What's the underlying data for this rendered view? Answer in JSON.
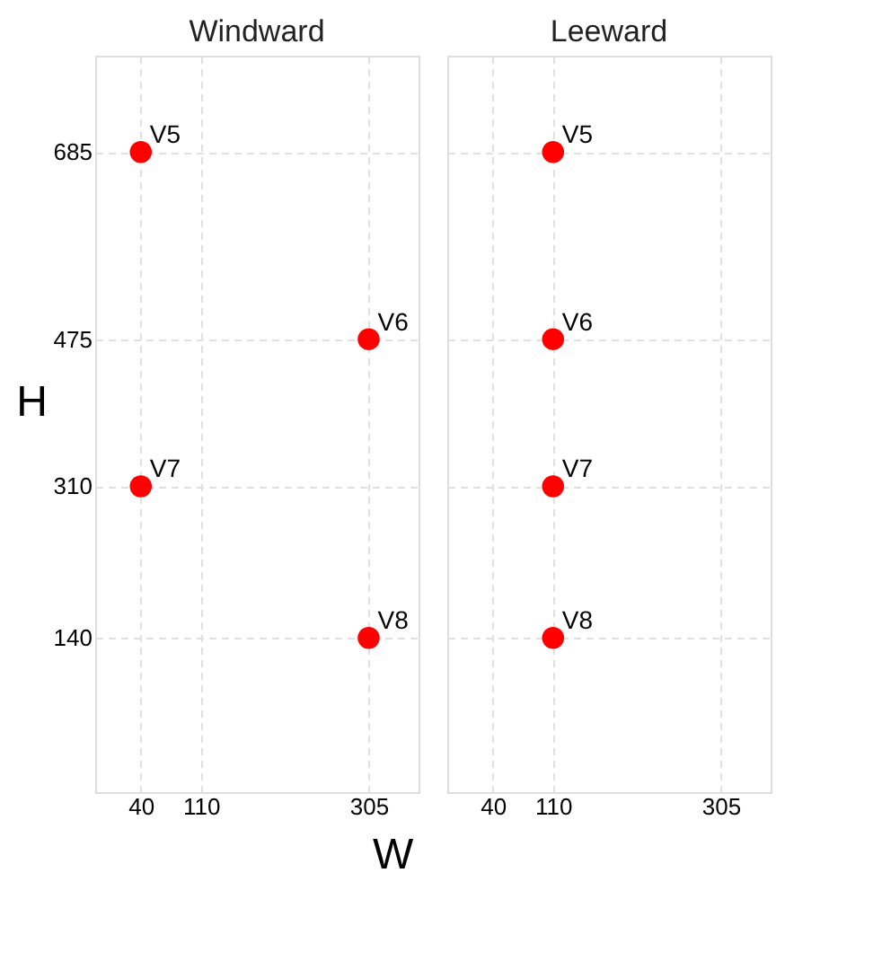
{
  "chart_data": [
    {
      "type": "scatter",
      "title": "Windward",
      "xlabel": "W",
      "ylabel": "H",
      "x": [
        40,
        305,
        40,
        305
      ],
      "values": [
        685,
        475,
        310,
        140
      ],
      "color": "#ff0000",
      "marker": "circle",
      "xlim": [
        -13,
        363
      ],
      "ylim": [
        -33,
        793
      ],
      "xticks": [
        40,
        110,
        305
      ],
      "yticks": [
        140,
        310,
        475,
        685
      ],
      "grid": true,
      "annotations": [
        {
          "text": "V5",
          "x": 40,
          "y": 685
        },
        {
          "text": "V6",
          "x": 305,
          "y": 475
        },
        {
          "text": "V7",
          "x": 40,
          "y": 310
        },
        {
          "text": "V8",
          "x": 305,
          "y": 140
        }
      ]
    },
    {
      "type": "scatter",
      "title": "Leeward",
      "x": [
        110,
        110,
        110,
        110
      ],
      "values": [
        685,
        475,
        310,
        140
      ],
      "color": "#ff0000",
      "marker": "circle",
      "xlim": [
        -13,
        363
      ],
      "ylim": [
        -33,
        793
      ],
      "xticks": [
        40,
        110,
        305
      ],
      "yticks": [
        140,
        310,
        475,
        685
      ],
      "grid": true,
      "tick_labels": "x",
      "annotations": [
        {
          "text": "V5",
          "x": 110,
          "y": 685
        },
        {
          "text": "V6",
          "x": 110,
          "y": 475
        },
        {
          "text": "V7",
          "x": 110,
          "y": 310
        },
        {
          "text": "V8",
          "x": 110,
          "y": 140
        }
      ]
    }
  ]
}
